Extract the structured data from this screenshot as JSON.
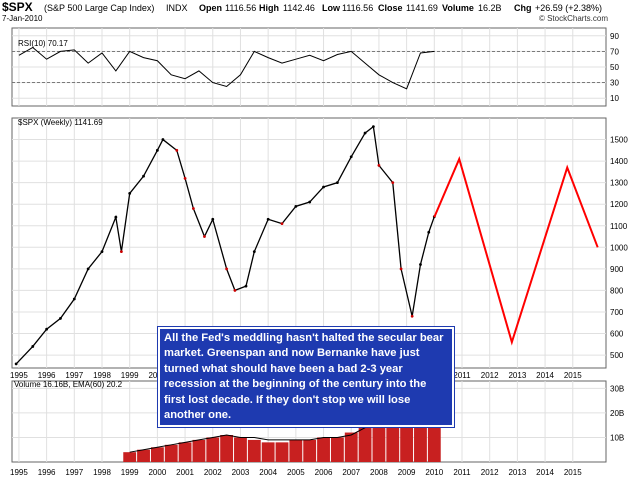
{
  "header": {
    "symbol": "$SPX",
    "name": "(S&P 500 Large Cap Index)",
    "exchange": "INDX",
    "date": "7-Jan-2010",
    "open_label": "Open",
    "open": "1116.56",
    "high_label": "High",
    "high": "1142.46",
    "low_label": "Low",
    "low": "1116.56",
    "close_label": "Close",
    "close": "1141.69",
    "volume_label": "Volume",
    "volume": "16.2B",
    "chg_label": "Chg",
    "chg": "+26.59 (+2.38%)",
    "watermark": "© StockCharts.com"
  },
  "annotation": "All the Fed's meddling hasn't halted the secular bear market. Greenspan and now Bernanke have just turned what should have been a bad 2-3 year recession at the beginning of the century into the first lost decade. If they don't stop we will lose another one.",
  "colors": {
    "price": "#000000",
    "down_bar": "#cc0000",
    "projection": "#ff0000",
    "volume": "#c82020",
    "ema": "#000000",
    "annotation_bg": "#1e3ab0",
    "panel_bg": "#ffffff",
    "grid": "#e0e0e0"
  },
  "chart_data": [
    {
      "type": "line",
      "panel": "rsi",
      "legend": "RSI(10) 70.17",
      "y_ticks": [
        10,
        30,
        50,
        70,
        90
      ],
      "ylim": [
        0,
        100
      ],
      "reference_lines": [
        30,
        70
      ],
      "x": [
        1995.0,
        1995.5,
        1996.0,
        1996.5,
        1997.0,
        1997.5,
        1998.0,
        1998.5,
        1999.0,
        1999.5,
        2000.0,
        2000.5,
        2001.0,
        2001.5,
        2002.0,
        2002.5,
        2003.0,
        2003.5,
        2004.0,
        2004.5,
        2005.0,
        2005.5,
        2006.0,
        2006.5,
        2007.0,
        2007.5,
        2008.0,
        2008.5,
        2009.0,
        2009.5,
        2010.0
      ],
      "values": [
        65,
        75,
        60,
        70,
        72,
        55,
        68,
        45,
        70,
        62,
        58,
        40,
        35,
        45,
        30,
        25,
        40,
        70,
        62,
        55,
        60,
        65,
        58,
        66,
        70,
        55,
        40,
        30,
        22,
        68,
        70
      ]
    },
    {
      "type": "line",
      "panel": "price",
      "legend": "$SPX (Weekly) 1141.69",
      "y_ticks": [
        500,
        600,
        700,
        800,
        900,
        1000,
        1100,
        1200,
        1300,
        1400,
        1500
      ],
      "ylim": [
        440,
        1600
      ],
      "x_ticks": [
        "1995",
        "1996",
        "1997",
        "1998",
        "1999",
        "2000",
        "2001",
        "2002",
        "2003",
        "2004",
        "2005",
        "2006",
        "2007",
        "2008",
        "2009",
        "2010",
        "2011",
        "2012",
        "2013",
        "2014",
        "2015"
      ],
      "series": [
        {
          "x": [
            1994.9,
            1995.5,
            1996.0,
            1996.5,
            1997.0,
            1997.5,
            1998.0,
            1998.5,
            1998.7,
            1999.0,
            1999.5,
            2000.0,
            2000.2,
            2000.7,
            2001.0,
            2001.3,
            2001.7,
            2002.0,
            2002.5,
            2002.8,
            2003.2,
            2003.5,
            2004.0,
            2004.5,
            2005.0,
            2005.5,
            2006.0,
            2006.5,
            2007.0,
            2007.5,
            2007.8,
            2008.0,
            2008.5,
            2008.8,
            2009.2,
            2009.5,
            2009.8,
            2010.0
          ],
          "values": [
            459,
            540,
            620,
            670,
            760,
            900,
            980,
            1140,
            980,
            1250,
            1330,
            1450,
            1500,
            1450,
            1320,
            1180,
            1050,
            1130,
            900,
            800,
            820,
            980,
            1130,
            1110,
            1190,
            1210,
            1280,
            1300,
            1420,
            1530,
            1560,
            1380,
            1300,
            900,
            680,
            920,
            1070,
            1142
          ]
        },
        {
          "projection": true,
          "x": [
            2010.0,
            2010.9,
            2012.8,
            2014.8,
            2015.9
          ],
          "values": [
            1140,
            1410,
            560,
            1370,
            1000
          ]
        }
      ]
    },
    {
      "type": "bar",
      "panel": "volume",
      "legend": "Volume 16.16B, EMA(60) 20.2",
      "y_ticks": [
        "10B",
        "20B",
        "30B"
      ],
      "ylim": [
        0,
        33
      ],
      "x": [
        1999.0,
        1999.5,
        2000.0,
        2000.5,
        2001.0,
        2001.5,
        2002.0,
        2002.5,
        2003.0,
        2003.5,
        2004.0,
        2004.5,
        2005.0,
        2005.5,
        2006.0,
        2006.5,
        2007.0,
        2007.5,
        2008.0,
        2008.5,
        2009.0,
        2009.5,
        2010.0
      ],
      "values": [
        4,
        5,
        6,
        7,
        8,
        9,
        10,
        11,
        10,
        9,
        8,
        8,
        9,
        9,
        10,
        10,
        12,
        15,
        20,
        24,
        23,
        19,
        16
      ],
      "ema": [
        4,
        5,
        6,
        7,
        8,
        9,
        10,
        11,
        10,
        10,
        9,
        9,
        9,
        9,
        10,
        10,
        11,
        14,
        18,
        21,
        22,
        20,
        20
      ]
    }
  ]
}
